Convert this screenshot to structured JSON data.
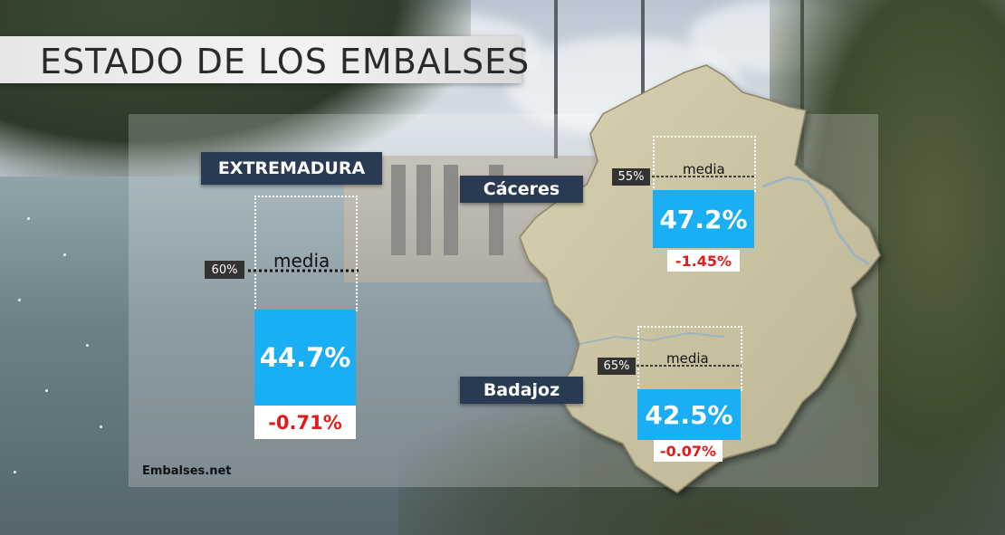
{
  "title": "ESTADO DE LOS EMBALSES",
  "source": "Embalses.net",
  "average_label": "media",
  "regions": {
    "extremadura": {
      "name": "EXTREMADURA",
      "average": "60%",
      "value": "44.7%",
      "change": "-0.71%",
      "value_pct": 44.7,
      "average_pct": 60
    },
    "caceres": {
      "name": "Cáceres",
      "average": "55%",
      "value": "47.2%",
      "change": "-1.45%",
      "value_pct": 47.2,
      "average_pct": 55
    },
    "badajoz": {
      "name": "Badajoz",
      "average": "65%",
      "value": "42.5%",
      "change": "-0.07%",
      "value_pct": 42.5,
      "average_pct": 65
    }
  },
  "colors": {
    "value_box": "#1aaef4",
    "change_text": "#e21a1a",
    "label_bg": "#2a3a52",
    "map_fill": "#c9c2a2"
  }
}
